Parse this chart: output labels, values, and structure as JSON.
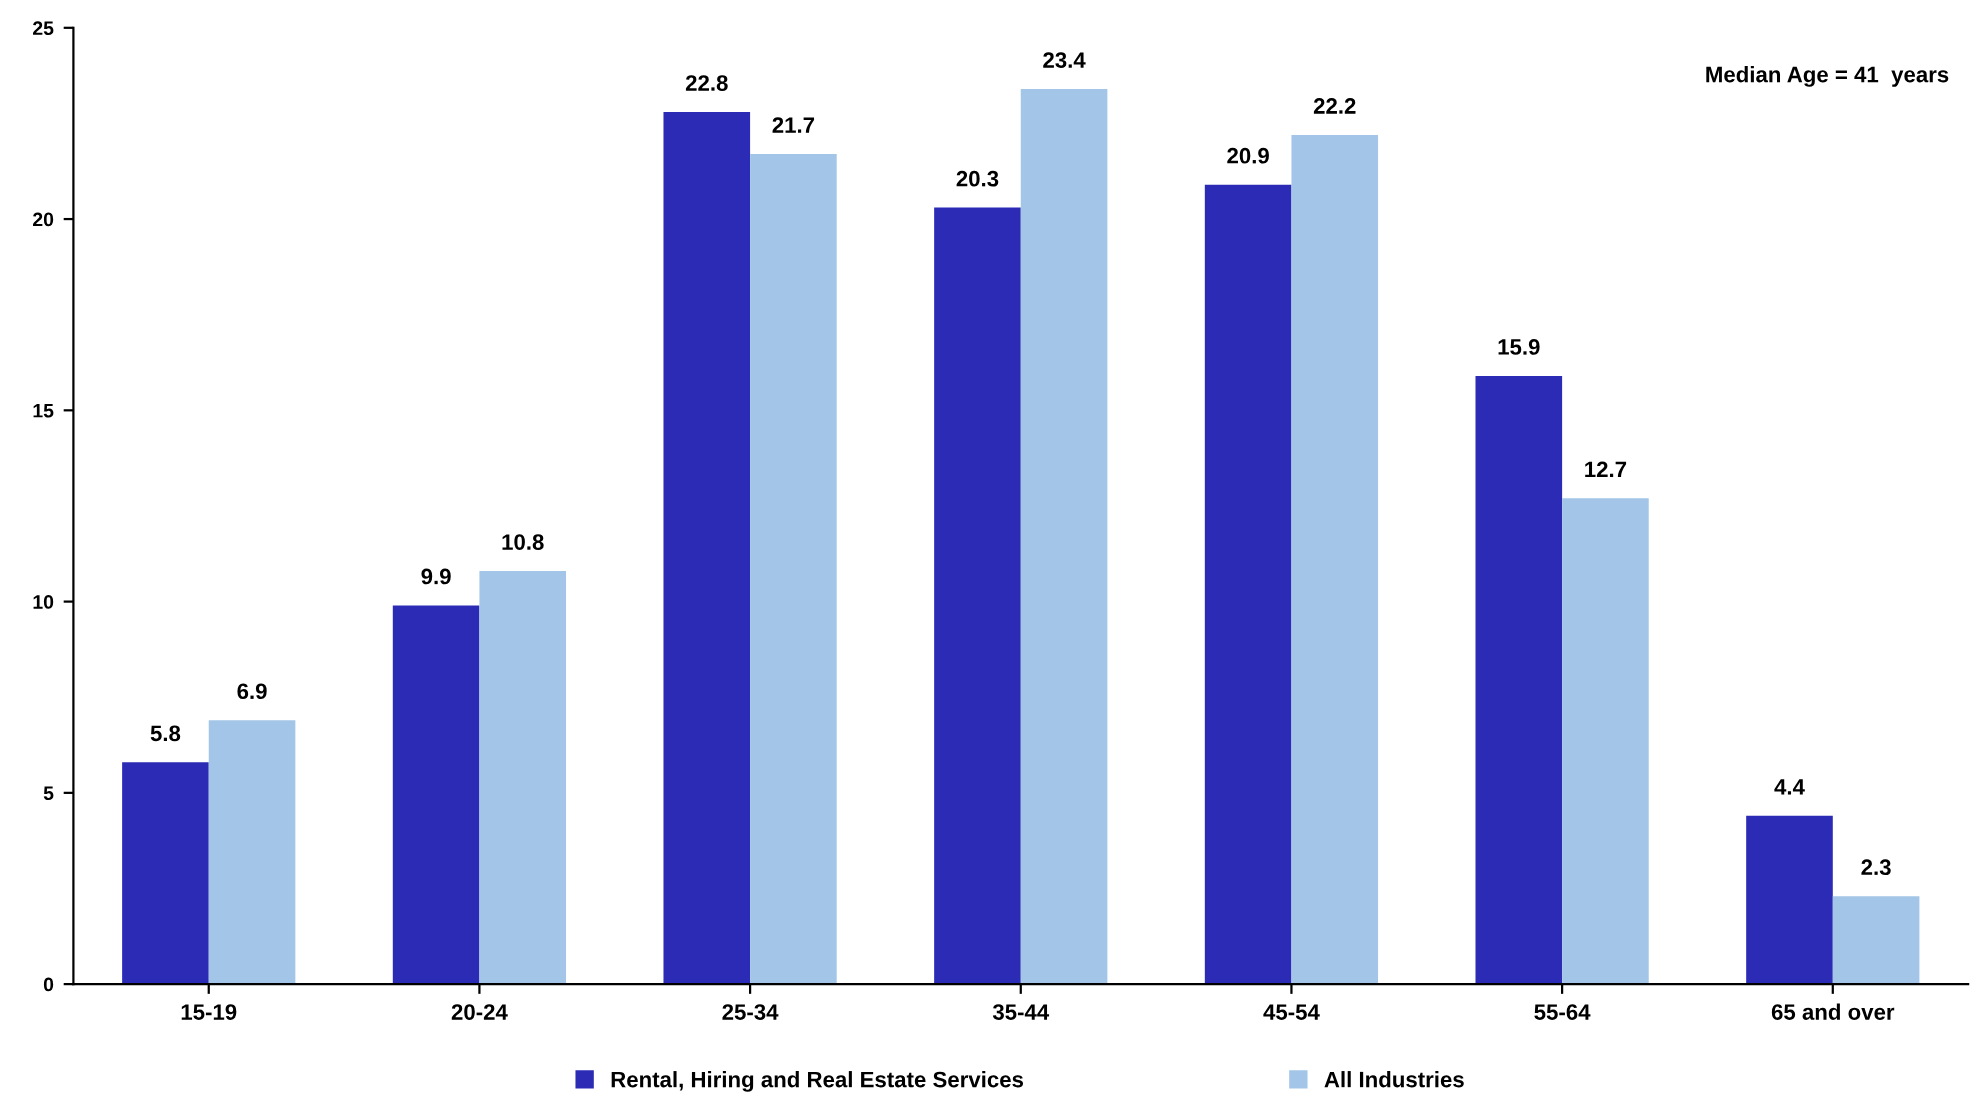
{
  "chart_data": {
    "type": "bar",
    "categories": [
      "15-19",
      "20-24",
      "25-34",
      "35-44",
      "45-54",
      "55-64",
      "65 and over"
    ],
    "series": [
      {
        "name": "Rental, Hiring and Real Estate Services",
        "color": "#2b2bb5",
        "values": [
          5.8,
          9.9,
          22.8,
          20.3,
          20.9,
          15.9,
          4.4
        ]
      },
      {
        "name": "All Industries",
        "color": "#a3c6e8",
        "values": [
          6.9,
          10.8,
          21.7,
          23.4,
          22.2,
          12.7,
          2.3
        ]
      }
    ],
    "ylim": [
      0,
      25
    ],
    "yticks": [
      0,
      5,
      10,
      15,
      20,
      25
    ],
    "grid": false,
    "legend": "bottom",
    "data_labels": true,
    "annotations": [
      "Median Age = 41  years"
    ]
  }
}
